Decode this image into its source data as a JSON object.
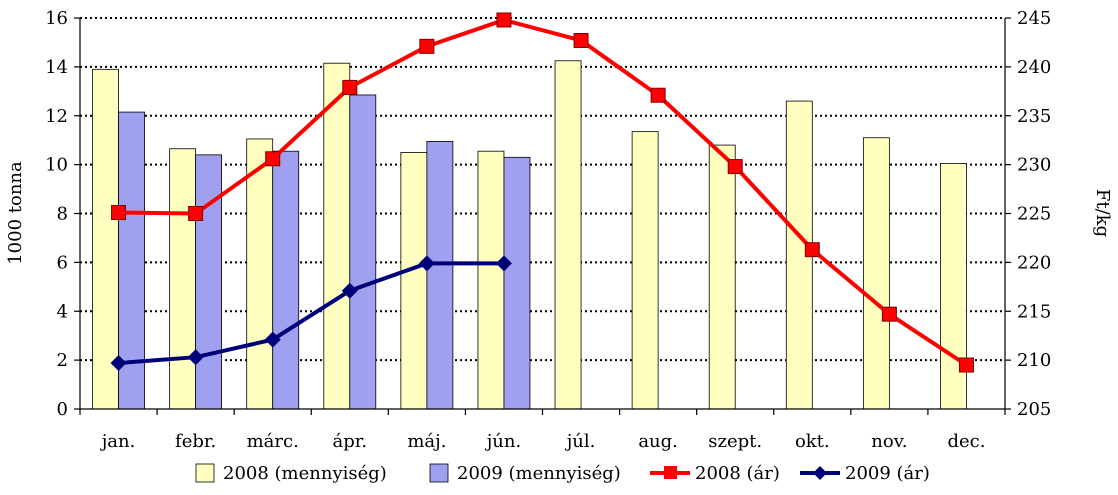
{
  "chart_data": {
    "type": "bar",
    "categories": [
      "jan.",
      "febr.",
      "márc.",
      "ápr.",
      "máj.",
      "jún.",
      "júl.",
      "aug.",
      "szept.",
      "okt.",
      "nov.",
      "dec."
    ],
    "ylabel_left": "1000 tonna",
    "ylabel_right": "Ft/kg",
    "ylim_left": [
      0,
      16
    ],
    "ylim_right": [
      205,
      245
    ],
    "yticks_left": [
      0,
      2,
      4,
      6,
      8,
      10,
      12,
      14,
      16
    ],
    "yticks_right": [
      205,
      210,
      215,
      220,
      225,
      230,
      235,
      240,
      245
    ],
    "grid": true,
    "legend_position": "bottom",
    "series": [
      {
        "name": "2008 (mennyiség)",
        "kind": "bar",
        "axis": "left",
        "color": "#ffffc0",
        "values": [
          13.9,
          10.65,
          11.05,
          14.15,
          10.5,
          10.55,
          14.25,
          11.35,
          10.8,
          12.6,
          11.1,
          10.05
        ]
      },
      {
        "name": "2009 (mennyiség)",
        "kind": "bar",
        "axis": "left",
        "color": "#a0a0f0",
        "values": [
          12.15,
          10.4,
          10.55,
          12.85,
          10.95,
          10.3,
          null,
          null,
          null,
          null,
          null,
          null
        ]
      },
      {
        "name": "2008 (ár)",
        "kind": "line",
        "axis": "right",
        "color": "#ff0000",
        "marker": "square",
        "values": [
          225.1,
          225.0,
          230.6,
          237.9,
          242.1,
          244.8,
          242.7,
          237.1,
          229.8,
          221.3,
          214.7,
          209.5
        ]
      },
      {
        "name": "2009 (ár)",
        "kind": "line",
        "axis": "right",
        "color": "#00007a",
        "marker": "diamond",
        "values": [
          209.7,
          210.3,
          212.1,
          217.1,
          219.9,
          219.9,
          null,
          null,
          null,
          null,
          null,
          null
        ]
      }
    ]
  }
}
